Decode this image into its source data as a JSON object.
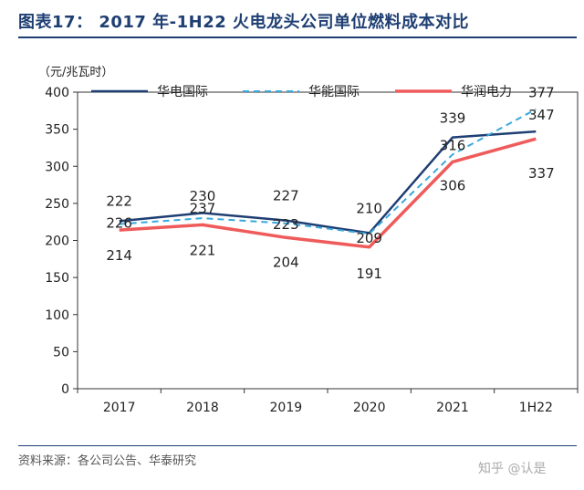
{
  "figure": {
    "title": "图表17： 2017 年-1H22 火电龙头公司单位燃料成本对比",
    "source": "资料来源：各公司公告、华泰研究",
    "watermark": "知乎 @认是"
  },
  "chart_data": {
    "type": "line",
    "title": "",
    "ylabel": "（元/兆瓦时）",
    "xlabel": "",
    "categories": [
      "2017",
      "2018",
      "2019",
      "2020",
      "2021",
      "1H22"
    ],
    "ylim": [
      0,
      400
    ],
    "yticks": [
      0,
      50,
      100,
      150,
      200,
      250,
      300,
      350,
      400
    ],
    "grid": false,
    "legend_position": "top",
    "series": [
      {
        "name": "华电国际",
        "values": [
          226,
          237,
          227,
          210,
          339,
          347
        ],
        "labels": [
          "226",
          "237",
          "227",
          "210",
          "339",
          "347"
        ],
        "color": "#1f3f73",
        "style": "solid"
      },
      {
        "name": "华能国际",
        "values": [
          222,
          230,
          223,
          209,
          316,
          377
        ],
        "labels": [
          "222",
          "230",
          "223",
          "209",
          "316",
          "377"
        ],
        "color": "#3aa8dc",
        "style": "dashed"
      },
      {
        "name": "华润电力",
        "values": [
          214,
          221,
          204,
          191,
          306,
          337
        ],
        "labels": [
          "214",
          "221",
          "204",
          "191",
          "306",
          "337"
        ],
        "color": "#ef5b5b",
        "style": "solid"
      }
    ]
  }
}
